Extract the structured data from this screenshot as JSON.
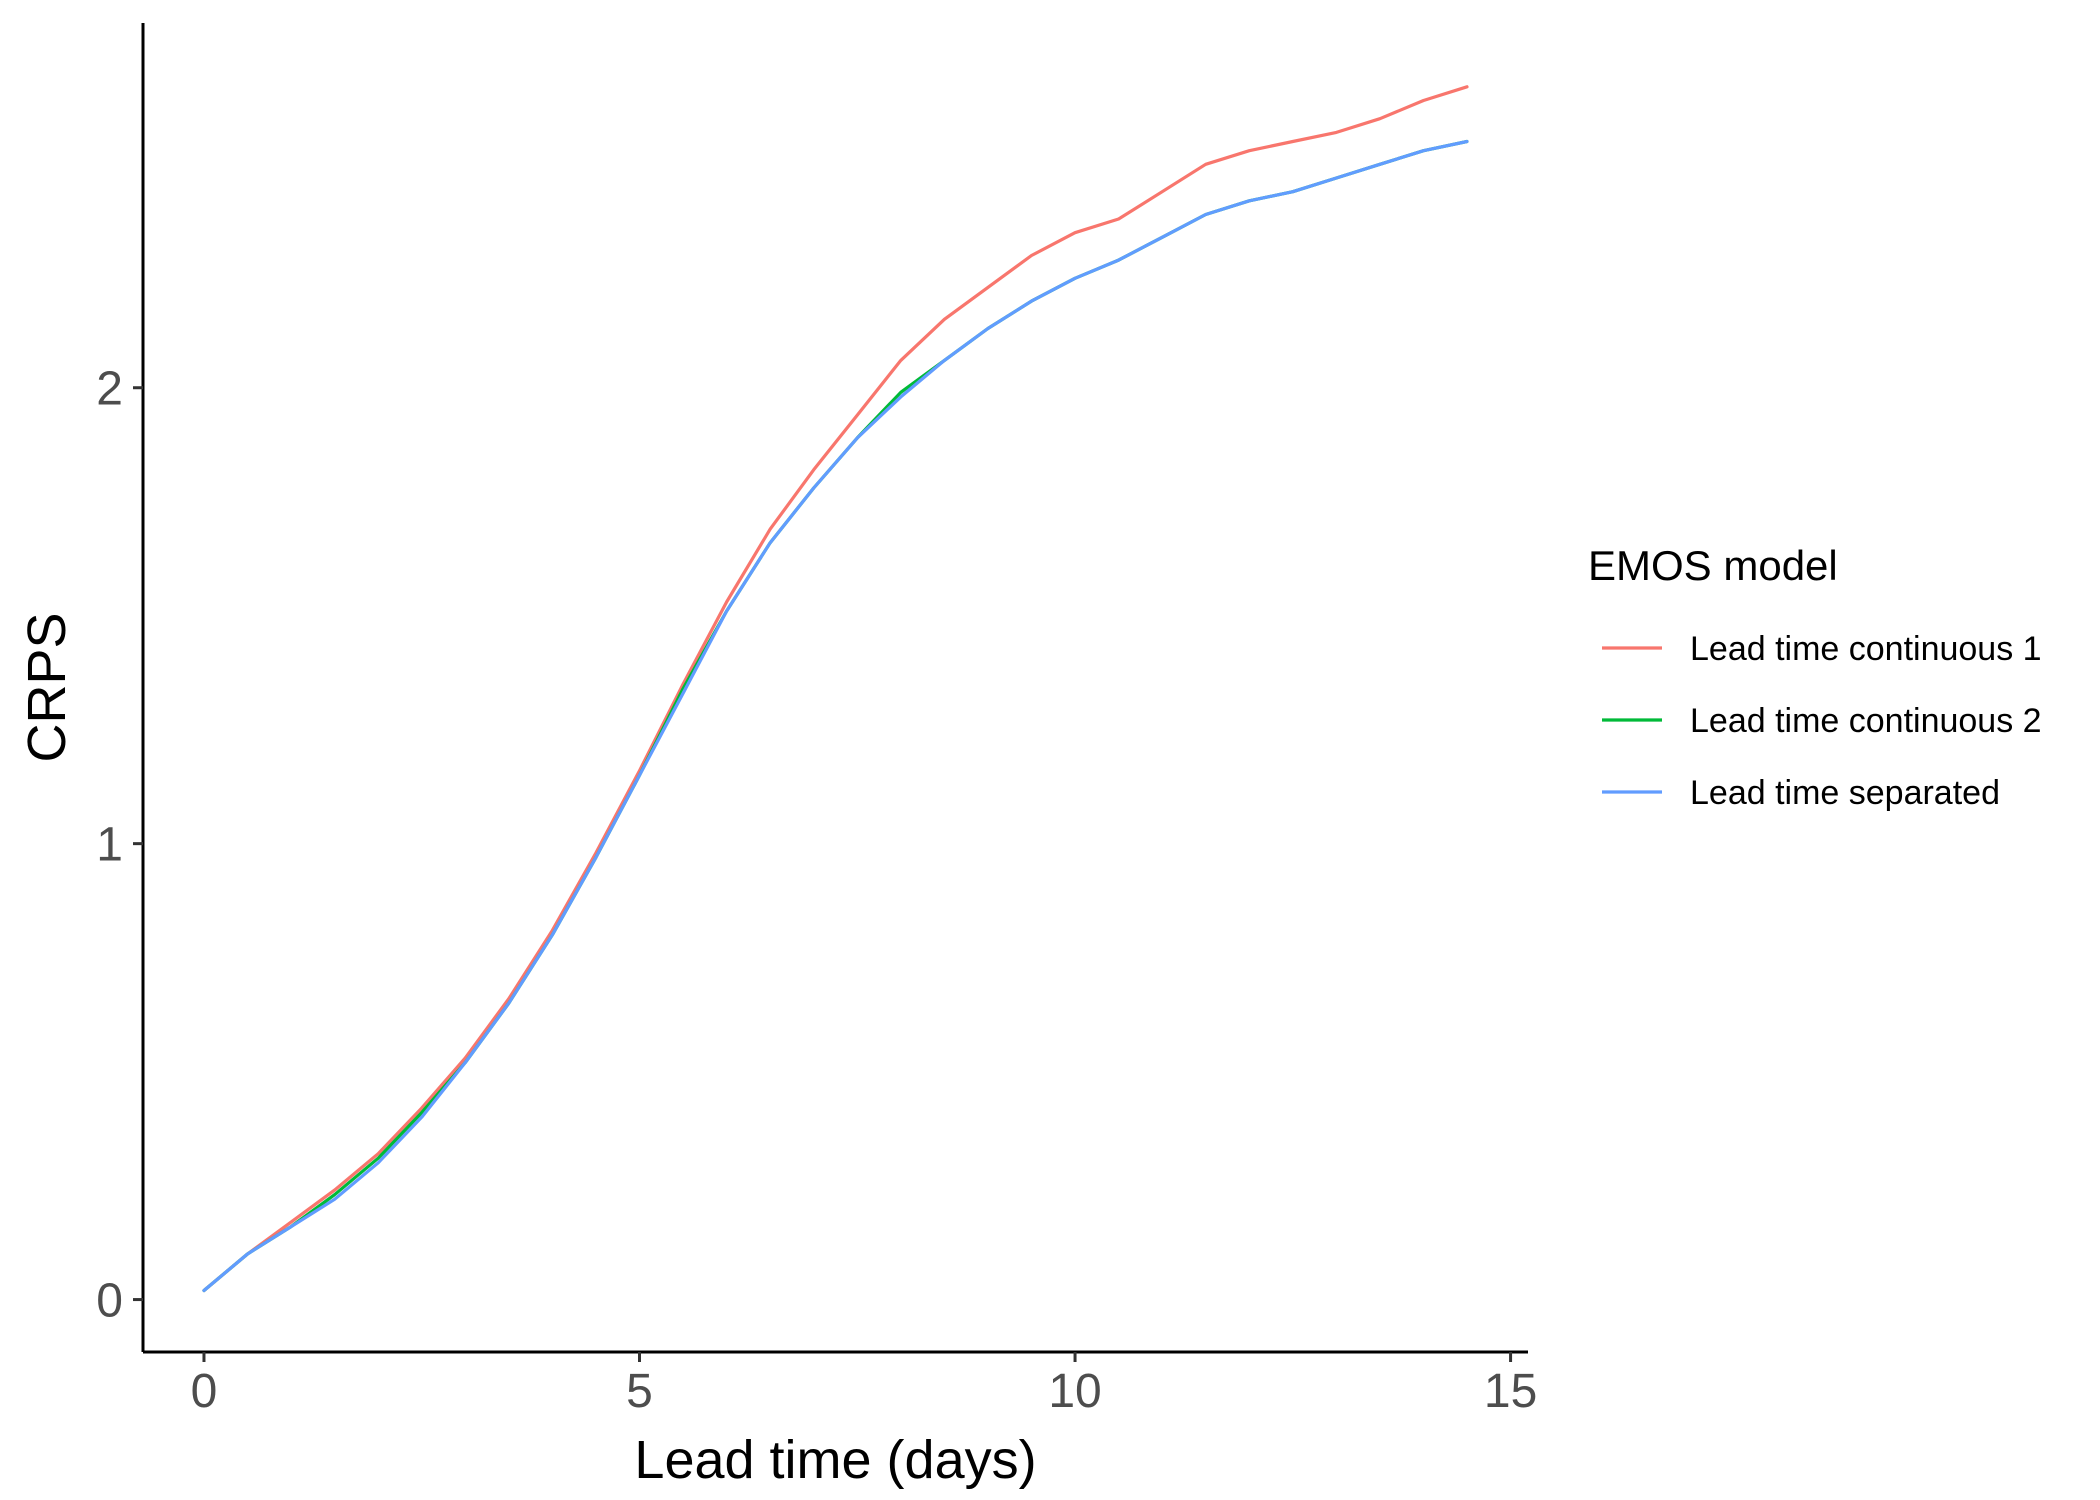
{
  "chart_data": {
    "type": "line",
    "xlabel": "Lead time (days)",
    "ylabel": "CRPS",
    "xlim": [
      -0.7,
      15.2
    ],
    "ylim": [
      -0.115,
      2.8
    ],
    "xticks": [
      0,
      5,
      10,
      15
    ],
    "xtick_labels": [
      "0",
      "5",
      "10",
      "15"
    ],
    "yticks": [
      0,
      1,
      2
    ],
    "ytick_labels": [
      "0",
      "1",
      "2"
    ],
    "grid": false,
    "legend": {
      "title": "EMOS model",
      "position": "right"
    },
    "x": [
      0,
      0.5,
      1,
      1.5,
      2,
      2.5,
      3,
      3.5,
      4,
      4.5,
      5,
      5.5,
      6,
      6.5,
      7,
      7.5,
      8,
      8.5,
      9,
      9.5,
      10,
      10.5,
      11,
      11.5,
      12,
      12.5,
      13,
      13.5,
      14,
      14.5
    ],
    "series": [
      {
        "name": "Lead time continuous 1",
        "color": "#F8766D",
        "values": [
          0.02,
          0.1,
          0.17,
          0.24,
          0.32,
          0.42,
          0.53,
          0.66,
          0.81,
          0.98,
          1.16,
          1.35,
          1.53,
          1.69,
          1.82,
          1.94,
          2.06,
          2.15,
          2.22,
          2.29,
          2.34,
          2.37,
          2.43,
          2.49,
          2.52,
          2.54,
          2.56,
          2.59,
          2.63,
          2.66
        ]
      },
      {
        "name": "Lead time continuous 2",
        "color": "#00BA38",
        "values": [
          0.02,
          0.1,
          0.16,
          0.23,
          0.31,
          0.41,
          0.52,
          0.65,
          0.8,
          0.97,
          1.15,
          1.34,
          1.51,
          1.66,
          1.78,
          1.89,
          1.99,
          2.06,
          2.13,
          2.19,
          2.24,
          2.28,
          2.33,
          2.38,
          2.41,
          2.43,
          2.46,
          2.49,
          2.52,
          2.54
        ]
      },
      {
        "name": "Lead time separated",
        "color": "#619CFF",
        "values": [
          0.02,
          0.1,
          0.16,
          0.22,
          0.3,
          0.4,
          0.52,
          0.65,
          0.8,
          0.97,
          1.15,
          1.33,
          1.51,
          1.66,
          1.78,
          1.89,
          1.98,
          2.06,
          2.13,
          2.19,
          2.24,
          2.28,
          2.33,
          2.38,
          2.41,
          2.43,
          2.46,
          2.49,
          2.52,
          2.54
        ]
      }
    ]
  }
}
